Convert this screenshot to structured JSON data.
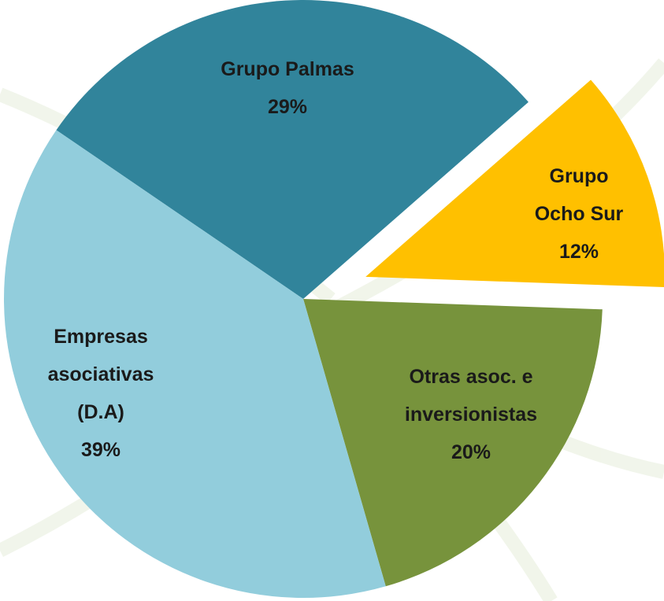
{
  "chart_data": {
    "type": "pie",
    "categories": [
      "Grupo Palmas",
      "Grupo Ocho Sur",
      "Otras asoc. e inversionistas",
      "Empresas asociativas (D.A)"
    ],
    "values": [
      29,
      12,
      20,
      39
    ],
    "value_labels": [
      "29%",
      "12%",
      "20%",
      "39%"
    ],
    "colors": [
      "#31849b",
      "#ffc000",
      "#77933c",
      "#92cddc"
    ]
  }
}
